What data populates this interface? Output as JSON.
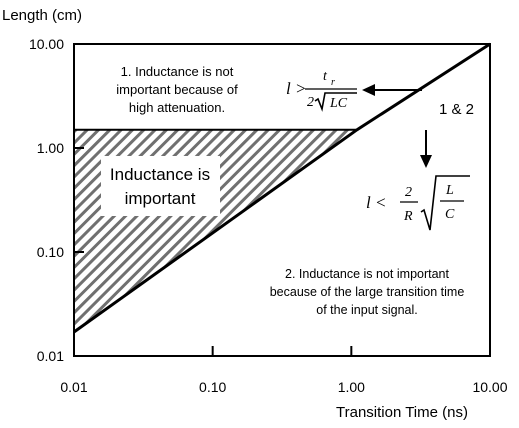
{
  "chart_data": {
    "type": "line",
    "title": "",
    "xlabel": "Transition Time (ns)",
    "ylabel": "Length (cm)",
    "x_scale": "log",
    "y_scale": "log",
    "xlim": [
      0.01,
      10
    ],
    "ylim": [
      0.01,
      10
    ],
    "x_ticks": [
      0.01,
      0.1,
      1,
      10
    ],
    "x_tick_labels": [
      "0.01",
      "0.10",
      "1.00",
      "10.00"
    ],
    "y_ticks": [
      0.01,
      0.1,
      1,
      10
    ],
    "y_tick_labels": [
      "0.01",
      "0.10",
      "1.00",
      "10.00"
    ],
    "grid": false,
    "series": [
      {
        "name": "",
        "x": [
          0.01,
          1.1,
          10
        ],
        "y": [
          0.017,
          1.5,
          10
        ]
      },
      {
        "name": "",
        "x": [
          0.01,
          1.1
        ],
        "y": [
          1.5,
          1.5
        ]
      }
    ],
    "hatched_region": {
      "x": [
        0.01,
        1.1,
        0.01
      ],
      "y": [
        0.017,
        1.5,
        1.5
      ]
    },
    "annotations": {
      "region1": [
        "1. Inductance is not",
        "important because of",
        "high attenuation."
      ],
      "region2": [
        "2. Inductance is not important",
        "because of the  large transition time",
        "of the input signal."
      ],
      "important": [
        "Inductance is",
        "important"
      ],
      "both": "1 & 2",
      "formula1": {
        "lhs": "l >",
        "num": "t",
        "num_sub": "r",
        "den_coef": "2",
        "den_rad": "LC"
      },
      "formula2": {
        "lhs": "l <",
        "num": "2",
        "den": "R",
        "rad_num": "L",
        "rad_den": "C"
      }
    }
  }
}
